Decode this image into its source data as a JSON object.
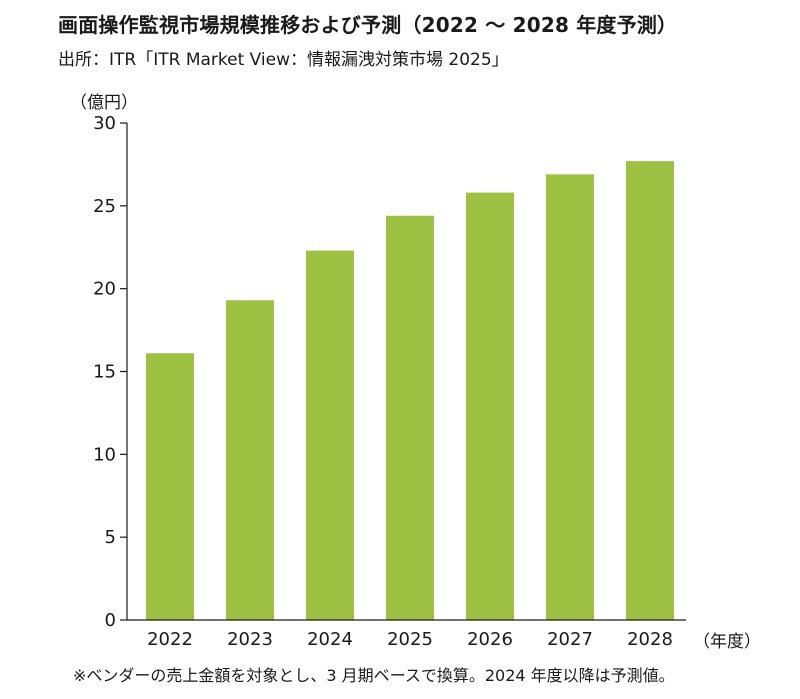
{
  "title": "画面操作監視市場規模推移および予測（2022 ～ 2028 年度予測）",
  "source": "出所：ITR「ITR Market View：情報漏洩対策市場 2025」",
  "footnote": "※ベンダーの売上金額を対象とし、3 月期ベースで換算。2024 年度以降は予測値。",
  "colors": {
    "bar": "#9dc143",
    "axis": "#1a1a1a"
  },
  "chart_data": {
    "type": "bar",
    "title": "画面操作監視市場規模推移および予測（2022 ～ 2028 年度予測）",
    "ylabel": "（億円）",
    "xlabel": "（年度）",
    "categories": [
      "2022",
      "2023",
      "2024",
      "2025",
      "2026",
      "2027",
      "2028"
    ],
    "values": [
      16.1,
      19.3,
      22.3,
      24.4,
      25.8,
      26.9,
      27.7
    ],
    "ylim": [
      0,
      30
    ],
    "yticks": [
      0,
      5,
      10,
      15,
      20,
      25,
      30
    ],
    "grid": false,
    "legend": "none"
  }
}
